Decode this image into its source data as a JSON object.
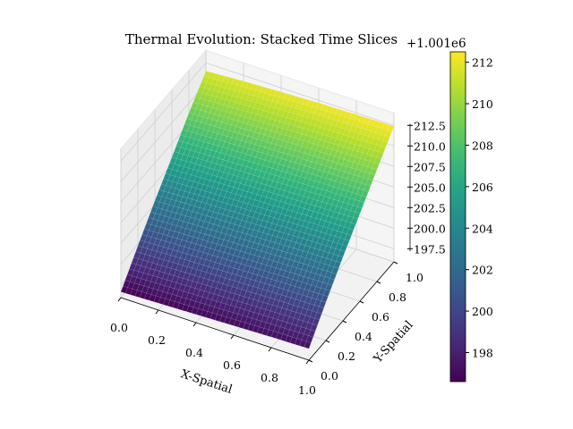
{
  "chart_data": {
    "type": "surface",
    "title": "Thermal Evolution: Stacked Time Slices",
    "xlabel": "X-Spatial",
    "ylabel": "Y-Spatial",
    "zlabel": "",
    "offset_label": "+1.001e6",
    "colormap": "viridis",
    "x": [
      0,
      0.2,
      0.4,
      0.6,
      0.8,
      1.0
    ],
    "y": [
      0,
      0.2,
      0.4,
      0.6,
      0.8,
      1.0
    ],
    "z": [
      [
        196.6,
        196.75,
        196.9,
        197.05,
        197.2,
        197.3
      ],
      [
        199.8,
        200.0,
        200.15,
        200.3,
        200.45,
        200.55
      ],
      [
        202.9,
        203.1,
        203.25,
        203.4,
        203.55,
        203.65
      ],
      [
        205.8,
        206.0,
        206.15,
        206.3,
        206.45,
        206.55
      ],
      [
        208.8,
        209.0,
        209.15,
        209.3,
        209.4,
        209.5
      ],
      [
        211.5,
        211.8,
        212.0,
        212.2,
        212.3,
        212.4
      ]
    ],
    "xticks": [
      "0.0",
      "0.2",
      "0.4",
      "0.6",
      "0.8",
      "1.0"
    ],
    "yticks": [
      "0.0",
      "0.2",
      "0.4",
      "0.6",
      "0.8",
      "1.0"
    ],
    "zticks": [
      "197.5",
      "200.0",
      "202.5",
      "205.0",
      "207.5",
      "210.0",
      "212.5"
    ],
    "zlim": [
      195.9,
      214
    ],
    "colorbar": {
      "ticks": [
        "198",
        "200",
        "202",
        "204",
        "206",
        "208",
        "210",
        "212"
      ],
      "range": [
        196.6,
        212.5
      ]
    },
    "grid": true
  }
}
